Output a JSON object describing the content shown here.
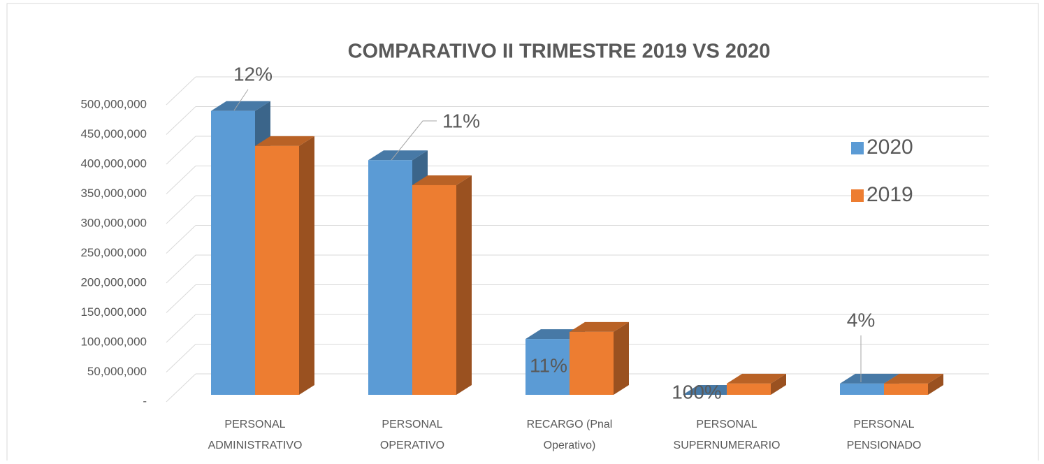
{
  "chart_data": {
    "type": "bar3d",
    "title": "COMPARATIVO II TRIMESTRE 2019 VS 2020",
    "categories": [
      [
        "PERSONAL",
        "ADMINISTRATIVO"
      ],
      [
        "PERSONAL",
        "OPERATIVO"
      ],
      [
        "RECARGO (Pnal",
        "Operativo)"
      ],
      [
        "PERSONAL",
        "SUPERNUMERARIO"
      ],
      [
        "PERSONAL",
        "PENSIONADO"
      ]
    ],
    "series": [
      {
        "name": "2020",
        "color": "#5b9bd5",
        "values": [
          478000000,
          395000000,
          94000000,
          0,
          19000000
        ]
      },
      {
        "name": "2019",
        "color": "#ed7d31",
        "values": [
          419000000,
          353000000,
          106000000,
          19000000,
          19000000
        ]
      }
    ],
    "data_labels": [
      "12%",
      "11%",
      "11%",
      "100%",
      "4%"
    ],
    "ylim": [
      0,
      500000000
    ],
    "yticks": [
      {
        "value": 0,
        "label": "-"
      },
      {
        "value": 50000000,
        "label": "50,000,000"
      },
      {
        "value": 100000000,
        "label": "100,000,000"
      },
      {
        "value": 150000000,
        "label": "150,000,000"
      },
      {
        "value": 200000000,
        "label": "200,000,000"
      },
      {
        "value": 250000000,
        "label": "250,000,000"
      },
      {
        "value": 300000000,
        "label": "300,000,000"
      },
      {
        "value": 350000000,
        "label": "350,000,000"
      },
      {
        "value": 400000000,
        "label": "400,000,000"
      },
      {
        "value": 450000000,
        "label": "450,000,000"
      },
      {
        "value": 500000000,
        "label": "500,000,000"
      }
    ],
    "grid": true,
    "legend": "right"
  }
}
